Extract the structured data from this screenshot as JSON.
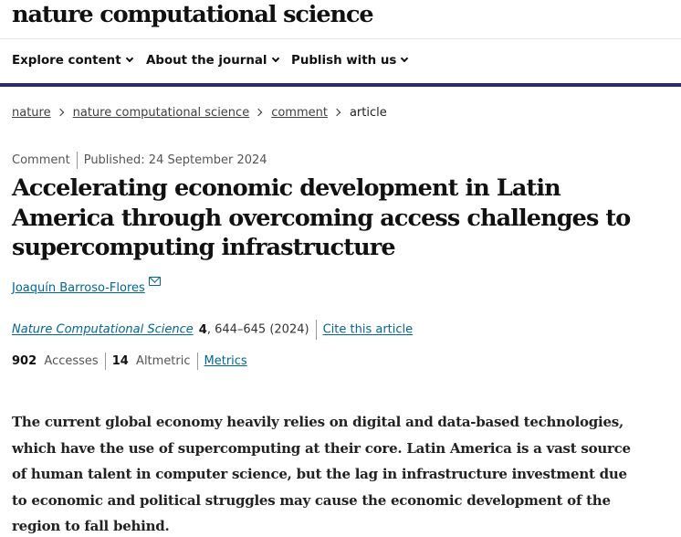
{
  "masthead": {
    "title": "nature computational science"
  },
  "nav": {
    "items": [
      {
        "label": "Explore content"
      },
      {
        "label": "About the journal"
      },
      {
        "label": "Publish with us"
      }
    ]
  },
  "breadcrumb": {
    "items": [
      {
        "label": "nature"
      },
      {
        "label": "nature computational science"
      },
      {
        "label": "comment"
      }
    ],
    "current": "article"
  },
  "meta": {
    "type": "Comment",
    "published": "Published: 24 September 2024"
  },
  "article": {
    "title": "Accelerating economic development in Latin America through overcoming access challenges to supercomputing infrastructure",
    "author": "Joaquín Barroso-Flores",
    "journal": "Nature Computational Science",
    "volume": "4",
    "pages_year": ", 644–645 (2024)",
    "cite_label": "Cite this article",
    "abstract": "The current global economy heavily relies on digital and data-based technologies, which have the use of supercomputing at their core. Latin America is a vast source of human talent in computer science, but the lag in infrastructure investment due to economic and political struggles may cause the economic development of the region to fall behind."
  },
  "metrics": {
    "accesses_count": "902",
    "accesses_label": "Accesses",
    "altmetric_count": "14",
    "altmetric_label": "Altmetric",
    "metrics_link": "Metrics"
  },
  "colors": {
    "nav_border": "#29297a",
    "link": "#006699"
  },
  "icons": {
    "nav_dropdown": "chevron-down-icon",
    "breadcrumb_sep": "chevron-right-icon",
    "author_email": "mail-icon"
  }
}
